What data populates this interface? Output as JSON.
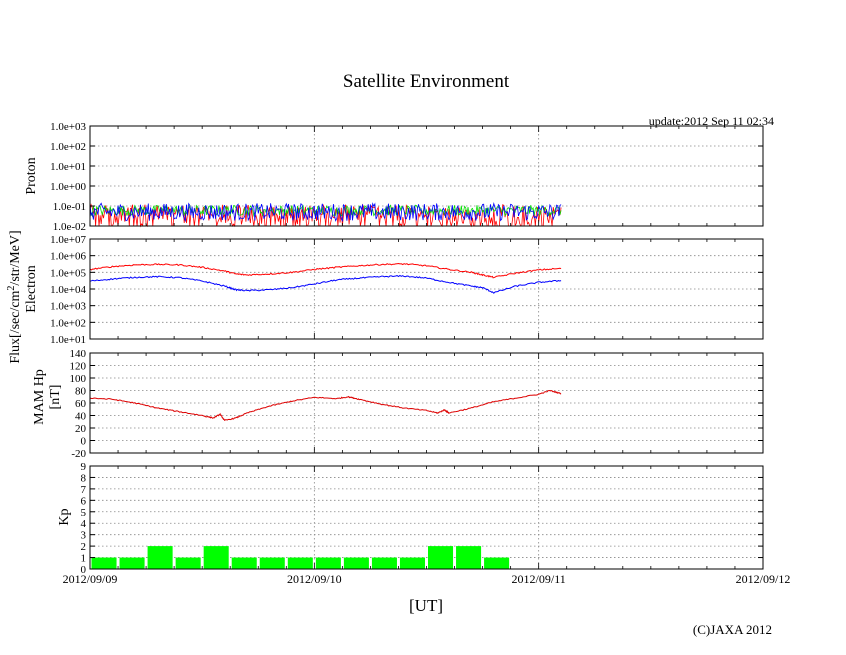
{
  "chart_data": {
    "type": "line",
    "title": "Satellite Environment",
    "update_text": "update:2012 Sep 11 02:34",
    "copyright": "(C)JAXA 2012",
    "xlabel": "[UT]",
    "x_range_days": [
      0,
      3
    ],
    "x_ticks": [
      {
        "day": 0,
        "label": "2012/09/09"
      },
      {
        "day": 1,
        "label": "2012/09/10"
      },
      {
        "day": 2,
        "label": "2012/09/11"
      },
      {
        "day": 3,
        "label": "2012/09/12"
      }
    ],
    "data_end_day": 2.1,
    "shared_ylabel": "Flux[/sec/cm2/str/MeV]",
    "shared_ylabel_main": "Flux[/sec/cm",
    "shared_ylabel_sup": "2",
    "shared_ylabel_rest": "/str/MeV]",
    "panels": [
      {
        "id": "proton",
        "ylabel": "Proton",
        "scale": "log",
        "ylim_exp": [
          -2,
          3
        ],
        "y_ticks": [
          "1.0e-02",
          "1.0e-01",
          "1.0e+00",
          "1.0e+01",
          "1.0e+02",
          "1.0e+03"
        ],
        "series": [
          {
            "name": "proton-channel-1",
            "color": "#ff0000",
            "base": 0.02,
            "noise": 0.35
          },
          {
            "name": "proton-channel-2",
            "color": "#00dd00",
            "base": 0.06,
            "noise": 0.12
          },
          {
            "name": "proton-channel-3",
            "color": "#0000ff",
            "base": 0.05,
            "noise": 0.2
          }
        ]
      },
      {
        "id": "electron",
        "ylabel": "Electron",
        "scale": "log",
        "ylim_exp": [
          1,
          7
        ],
        "y_ticks": [
          "1.0e+01",
          "1.0e+02",
          "1.0e+03",
          "1.0e+04",
          "1.0e+05",
          "1.0e+06",
          "1.0e+07"
        ],
        "series": [
          {
            "name": "electron-high",
            "color": "#ff0000",
            "x": [
              0,
              0.1,
              0.2,
              0.3,
              0.4,
              0.5,
              0.6,
              0.65,
              0.7,
              0.8,
              0.9,
              1.0,
              1.1,
              1.2,
              1.3,
              1.4,
              1.5,
              1.6,
              1.7,
              1.75,
              1.8,
              1.9,
              2.0,
              2.1
            ],
            "values": [
              150000,
              220000,
              280000,
              300000,
              280000,
              200000,
              120000,
              80000,
              70000,
              80000,
              100000,
              150000,
              200000,
              250000,
              300000,
              320000,
              250000,
              150000,
              100000,
              70000,
              50000,
              90000,
              140000,
              170000
            ]
          },
          {
            "name": "electron-low",
            "color": "#0000ff",
            "x": [
              0,
              0.1,
              0.2,
              0.3,
              0.4,
              0.5,
              0.6,
              0.65,
              0.7,
              0.8,
              0.9,
              1.0,
              1.1,
              1.2,
              1.3,
              1.4,
              1.5,
              1.6,
              1.7,
              1.75,
              1.8,
              1.9,
              2.0,
              2.1
            ],
            "values": [
              30000,
              40000,
              50000,
              55000,
              48000,
              30000,
              15000,
              9000,
              8000,
              9000,
              12000,
              20000,
              35000,
              45000,
              55000,
              60000,
              45000,
              25000,
              15000,
              12000,
              6000,
              15000,
              25000,
              32000
            ]
          }
        ]
      },
      {
        "id": "mam",
        "ylabel_line1": "MAM Hp",
        "ylabel_line2": "[nT]",
        "scale": "linear",
        "ylim": [
          -20,
          140
        ],
        "y_ticks": [
          "-20",
          "0",
          "20",
          "40",
          "60",
          "80",
          "100",
          "120",
          "140"
        ],
        "series": [
          {
            "name": "mam-hp",
            "color": "#dd0000",
            "x": [
              0,
              0.1,
              0.2,
              0.3,
              0.4,
              0.5,
              0.55,
              0.58,
              0.6,
              0.65,
              0.7,
              0.8,
              0.9,
              1.0,
              1.1,
              1.15,
              1.2,
              1.3,
              1.4,
              1.5,
              1.55,
              1.58,
              1.6,
              1.7,
              1.8,
              1.9,
              2.0,
              2.05,
              2.1
            ],
            "values": [
              68,
              66,
              60,
              52,
              46,
              40,
              36,
              42,
              32,
              36,
              44,
              55,
              63,
              69,
              67,
              70,
              66,
              58,
              52,
              48,
              44,
              49,
              44,
              52,
              62,
              68,
              74,
              80,
              75
            ]
          }
        ]
      },
      {
        "id": "kp",
        "ylabel": "Kp",
        "scale": "linear",
        "type": "bar",
        "ylim": [
          0,
          9
        ],
        "y_ticks": [
          "0",
          "1",
          "2",
          "3",
          "4",
          "5",
          "6",
          "7",
          "8",
          "9"
        ],
        "bar_color": "#00ff00",
        "bar_width_days": 0.125,
        "values": [
          1,
          1,
          2,
          1,
          2,
          1,
          1,
          1,
          1,
          1,
          1,
          1,
          2,
          2,
          1
        ]
      }
    ]
  }
}
